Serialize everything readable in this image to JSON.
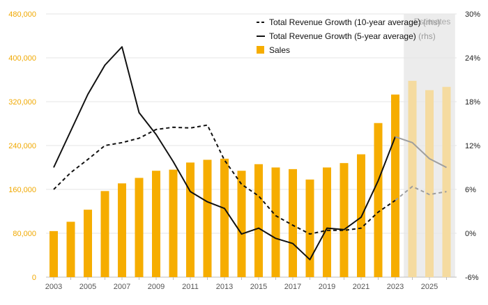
{
  "chart_data": {
    "type": "bar",
    "years": [
      2003,
      2004,
      2005,
      2006,
      2007,
      2008,
      2009,
      2010,
      2011,
      2012,
      2013,
      2014,
      2015,
      2016,
      2017,
      2018,
      2019,
      2020,
      2021,
      2022,
      2023,
      2024,
      2025,
      2026
    ],
    "x_tick_labels": [
      "2003",
      "2005",
      "2007",
      "2009",
      "2011",
      "2013",
      "2015",
      "2017",
      "2019",
      "2021",
      "2023",
      "2025"
    ],
    "left_axis": {
      "ylim": [
        0,
        480000
      ],
      "ticks": [
        "0",
        "80,000",
        "160,000",
        "240,000",
        "320,000",
        "400,000",
        "480,000"
      ],
      "color": "#f0a800"
    },
    "right_axis": {
      "ylim": [
        -6,
        30
      ],
      "ticks": [
        "-6%",
        "0%",
        "6%",
        "12%",
        "18%",
        "24%",
        "30%"
      ]
    },
    "estimates": {
      "label": "Estimates",
      "from_year": 2024,
      "to_year": 2026,
      "shade_color": "#ececec"
    },
    "series": [
      {
        "name": "Sales",
        "kind": "bar",
        "axis": "left",
        "color": "#f6ad00",
        "estimate_color": "#f5dba0",
        "values": [
          84000,
          101000,
          123000,
          157000,
          171000,
          181000,
          194000,
          196000,
          209000,
          214000,
          216000,
          194000,
          206000,
          200000,
          197000,
          178000,
          200000,
          208000,
          224000,
          281000,
          333000,
          358000,
          341000,
          347000
        ]
      },
      {
        "name": "Total Revenue Growth (10-year average)",
        "legend_suffix": "(rhs)",
        "kind": "line",
        "dash": true,
        "axis": "right",
        "color": "#111111",
        "estimate_color": "#9e9e9e",
        "values": [
          6.0,
          8.3,
          10.1,
          12.0,
          12.4,
          13.0,
          14.2,
          14.5,
          14.4,
          14.8,
          10.0,
          6.7,
          5.1,
          2.4,
          1.1,
          -0.1,
          0.4,
          0.4,
          0.7,
          2.9,
          4.5,
          6.4,
          5.3,
          5.7
        ]
      },
      {
        "name": "Total Revenue Growth (5-year average)",
        "legend_suffix": "(rhs)",
        "kind": "line",
        "dash": false,
        "axis": "right",
        "color": "#111111",
        "estimate_color": "#9e9e9e",
        "values": [
          9.0,
          14.0,
          19.0,
          23.0,
          25.5,
          16.5,
          13.5,
          9.8,
          5.7,
          4.3,
          3.4,
          -0.1,
          0.7,
          -0.7,
          -1.4,
          -3.6,
          0.7,
          0.5,
          2.2,
          7.2,
          13.2,
          12.4,
          10.2,
          9.0
        ]
      }
    ]
  }
}
